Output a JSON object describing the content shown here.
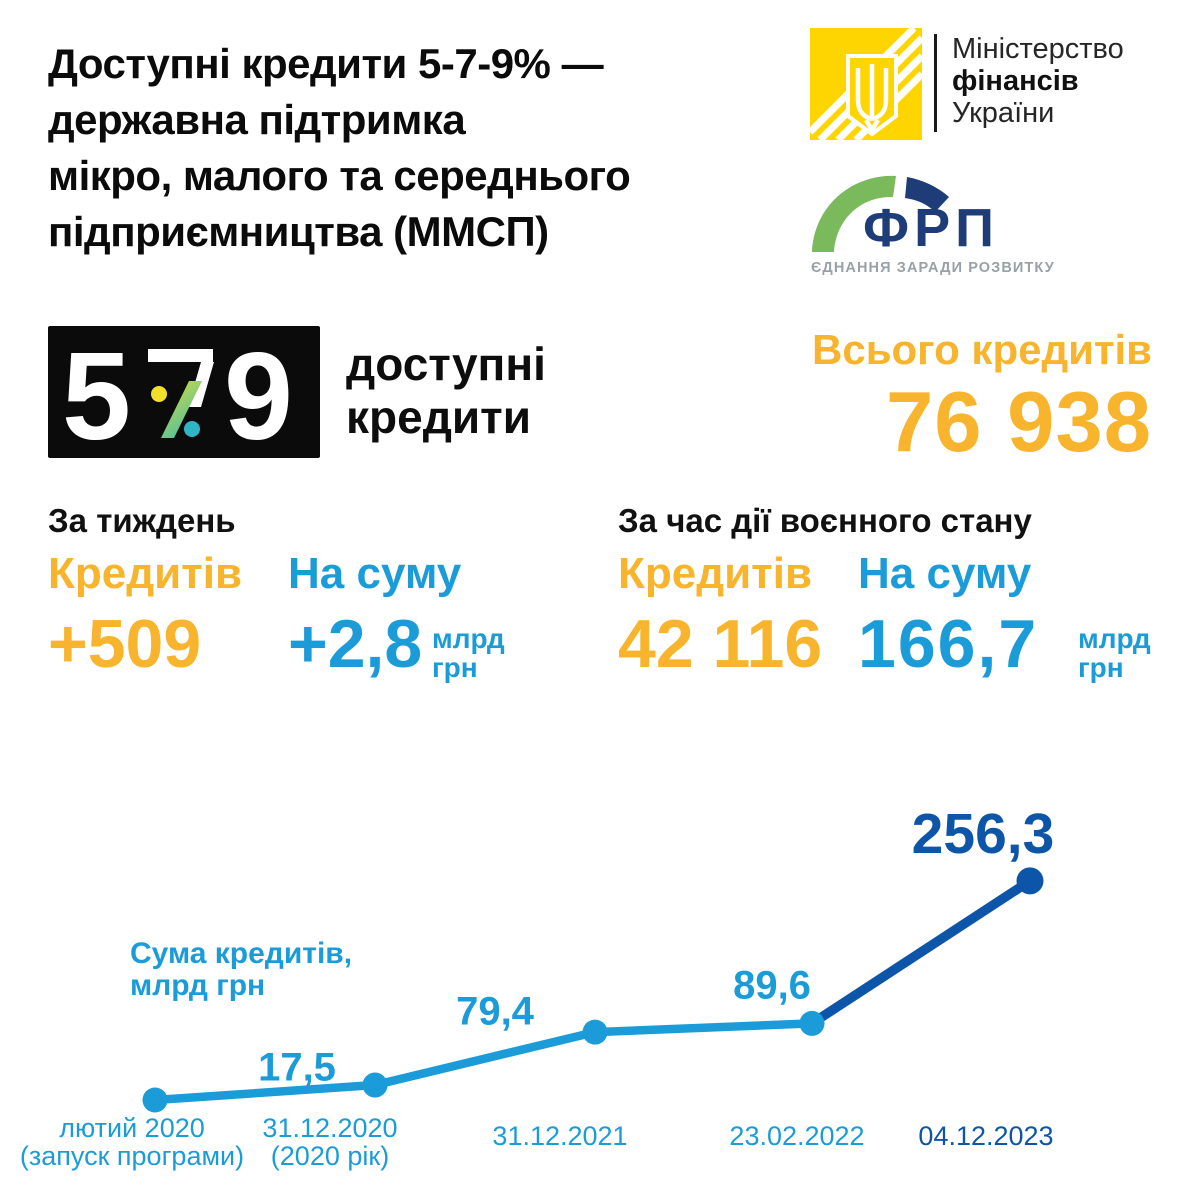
{
  "colors": {
    "yellow": "#F7B42C",
    "light_blue": "#1B9CD8",
    "dark_blue": "#0D55A8",
    "black": "#0B0B0B",
    "minfin_yellow": "#FFD500",
    "frp_green": "#7AB95C",
    "frp_navy": "#1E3C78",
    "tagline_gray": "#97A1A8",
    "logo_dot_yellow": "#F2DF2A",
    "logo_dot_teal": "#2EB6C6",
    "logo_slash_green_top": "#D9DE3B",
    "logo_slash_green_bottom": "#4FBFA0"
  },
  "header": {
    "title": "Доступні кредити 5-7-9% —\nдержавна підтримка\nмікро, малого та середнього\nпідприємництва (ММСП)",
    "minfin": {
      "line1": "Міністерство",
      "line2": "фінансів",
      "line3": "України"
    },
    "frp": {
      "abbr": "ФРП",
      "tagline": "ЄДНАННЯ ЗАРАДИ РОЗВИТКУ"
    }
  },
  "program_logo": {
    "digit5": "5",
    "digit7": "7",
    "digit9": "9",
    "label": "доступні\nкредити"
  },
  "totals": {
    "label": "Всього кредитів",
    "value": "76 938"
  },
  "week": {
    "title": "За тиждень",
    "loans_label": "Кредитів",
    "loans_value": "+509",
    "sum_label": "На суму",
    "sum_value": "+2,8",
    "sum_unit": "млрд\nгрн"
  },
  "martial_law": {
    "title": "За час дії воєнного стану",
    "loans_label": "Кредитів",
    "loans_value": "42 116",
    "sum_label": "На суму",
    "sum_value": "166,7",
    "sum_unit": "млрд\nгрн"
  },
  "chart_data": {
    "type": "line",
    "title": "Сума кредитів,\nмлрд грн",
    "ylabel": "Сума кредитів, млрд грн",
    "x": [
      "лютий 2020\n(запуск програми)",
      "31.12.2020\n(2020 рік)",
      "31.12.2021",
      "23.02.2022",
      "04.12.2023"
    ],
    "values": [
      0,
      17.5,
      79.4,
      89.6,
      256.3
    ],
    "point_labels": [
      "",
      "17,5",
      "79,4",
      "89,6",
      "256,3"
    ],
    "ylim": [
      0,
      270
    ],
    "grid": false,
    "legend": "none",
    "series_note": "segment to last point drawn in dark blue, earlier segments light blue"
  }
}
